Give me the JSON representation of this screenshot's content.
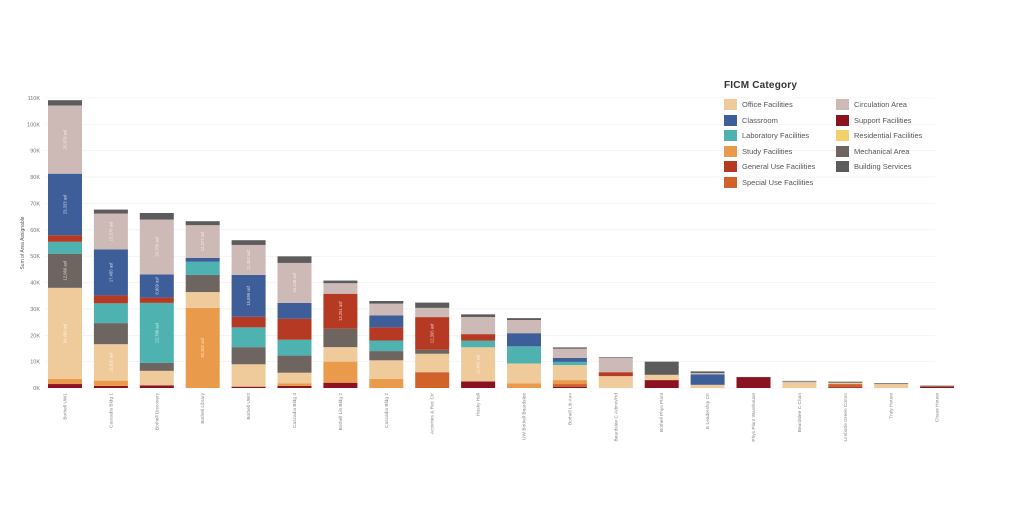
{
  "chart_data": {
    "type": "bar",
    "stacked": true,
    "title": "",
    "xlabel": "",
    "ylabel": "Sum of Area Assignable",
    "ylim": [
      0,
      110000
    ],
    "yticks": [
      0,
      10000,
      20000,
      30000,
      40000,
      50000,
      60000,
      70000,
      80000,
      90000,
      100000,
      110000
    ],
    "ytick_labels": [
      "0K",
      "10K",
      "20K",
      "30K",
      "40K",
      "50K",
      "60K",
      "70K",
      "80K",
      "90K",
      "100K",
      "110K"
    ],
    "grid": true,
    "legend_title": "FICM Category",
    "legend_position": "top-right",
    "legend_order": [
      "Office Facilities",
      "Circulation Area",
      "Classroom",
      "Support Facilities",
      "Laboratory Facilities",
      "Residential Facilities",
      "Study Facilities",
      "Mechanical Area",
      "General Use Facilities",
      "Building Services",
      "Special Use Facilities"
    ],
    "series_colors": {
      "Office Facilities": "#EFCB9C",
      "Classroom": "#3E5E9A",
      "Laboratory Facilities": "#4EB3B0",
      "Study Facilities": "#E99A4B",
      "General Use Facilities": "#B63A23",
      "Special Use Facilities": "#D2622C",
      "Circulation Area": "#CDB9B5",
      "Support Facilities": "#8A1221",
      "Residential Facilities": "#F2D16B",
      "Mechanical Area": "#6F6560",
      "Building Services": "#5C5C5C"
    },
    "stack_order": [
      "Support Facilities",
      "Special Use Facilities",
      "Study Facilities",
      "Office Facilities",
      "Mechanical Area",
      "Laboratory Facilities",
      "General Use Facilities",
      "Classroom",
      "Circulation Area",
      "Building Services"
    ],
    "categories": [
      "Bothell UW1",
      "Cascadia Bldg 1",
      "Bothell Discovery",
      "Bothell Library",
      "Bothell UW2",
      "Cascadia Bldg 3",
      "Bothell Lib Bldg 2",
      "Cascadia Bldg 2",
      "Activities & Rec Ctr",
      "Husky Hall",
      "UW Bothell Beardslee",
      "Bothell Lib Ann",
      "Beardslee C Admin/Hd",
      "Bothell Phys Plant",
      "E Leadership Ctr",
      "Phys Plant Warehouse",
      "Beardslee C Chan",
      "Limbatte Green Comm",
      "Truly House",
      "Chase House"
    ],
    "series": [
      {
        "name": "Support Facilities",
        "values": [
          1500,
          800,
          1000,
          0,
          500,
          800,
          2000,
          0,
          0,
          2500,
          0,
          500,
          0,
          3000,
          0,
          4000,
          0,
          300,
          0,
          400
        ]
      },
      {
        "name": "Special Use Facilities",
        "values": [
          0,
          0,
          0,
          0,
          0,
          0,
          0,
          0,
          6000,
          0,
          0,
          1000,
          0,
          0,
          0,
          0,
          0,
          1200,
          0,
          200
        ]
      },
      {
        "name": "Study Facilities",
        "values": [
          2000,
          2000,
          0,
          30382,
          0,
          1000,
          8000,
          3500,
          0,
          0,
          1800,
          1500,
          0,
          0,
          0,
          0,
          0,
          0,
          0,
          0
        ]
      },
      {
        "name": "Office Facilities",
        "values": [
          34488,
          13816,
          5500,
          6000,
          8500,
          4000,
          5500,
          7000,
          7000,
          12940,
          7500,
          5700,
          4500,
          2000,
          1200,
          0,
          2000,
          500,
          1500,
          0
        ]
      },
      {
        "name": "Mechanical Area",
        "values": [
          12966,
          8000,
          3000,
          6500,
          6500,
          6500,
          7000,
          3500,
          1500,
          0,
          0,
          0,
          0,
          0,
          0,
          0,
          0,
          0,
          0,
          0
        ]
      },
      {
        "name": "Laboratory Facilities",
        "values": [
          4500,
          7500,
          22788,
          5000,
          7500,
          6000,
          0,
          4000,
          0,
          2500,
          6500,
          1200,
          0,
          0,
          0,
          0,
          0,
          0,
          0,
          0
        ]
      },
      {
        "name": "General Use Facilities",
        "values": [
          2500,
          3000,
          2000,
          0,
          4000,
          8000,
          13251,
          5000,
          12395,
          2500,
          0,
          0,
          1500,
          0,
          0,
          0,
          0,
          0,
          0,
          0
        ]
      },
      {
        "name": "Classroom",
        "values": [
          23333,
          17485,
          8809,
          1500,
          15899,
          6000,
          0,
          4500,
          0,
          0,
          5000,
          1500,
          0,
          0,
          4000,
          0,
          0,
          0,
          0,
          0
        ]
      },
      {
        "name": "Circulation Area",
        "values": [
          25878,
          13576,
          20786,
          12377,
          11362,
          15138,
          4000,
          4500,
          3500,
          6500,
          5000,
          3500,
          5500,
          0,
          500,
          0,
          500,
          0,
          0,
          0
        ]
      },
      {
        "name": "Building Services",
        "values": [
          2000,
          1500,
          2500,
          1500,
          1800,
          2500,
          1000,
          1000,
          2000,
          1000,
          700,
          500,
          200,
          5000,
          600,
          200,
          200,
          400,
          300,
          300
        ]
      }
    ],
    "data_labels": [
      {
        "category": "Bothell UW1",
        "series": "Office Facilities",
        "text": "34,488 asf"
      },
      {
        "category": "Bothell UW1",
        "series": "Mechanical Area",
        "text": "12,966 asf"
      },
      {
        "category": "Bothell UW1",
        "series": "Classroom",
        "text": "23,333 asf"
      },
      {
        "category": "Bothell UW1",
        "series": "Circulation Area",
        "text": "25,878 asf"
      },
      {
        "category": "Cascadia Bldg 1",
        "series": "Office Facilities",
        "text": "13,816 asf"
      },
      {
        "category": "Cascadia Bldg 1",
        "series": "Classroom",
        "text": "17,485 asf"
      },
      {
        "category": "Cascadia Bldg 1",
        "series": "Circulation Area",
        "text": "13,576 asf"
      },
      {
        "category": "Bothell Discovery",
        "series": "Laboratory Facilities",
        "text": "22,788 asf"
      },
      {
        "category": "Bothell Discovery",
        "series": "Classroom",
        "text": "8,809 asf"
      },
      {
        "category": "Bothell Discovery",
        "series": "Circulation Area",
        "text": "20,786 asf"
      },
      {
        "category": "Bothell Library",
        "series": "Study Facilities",
        "text": "30,382 asf"
      },
      {
        "category": "Bothell Library",
        "series": "Circulation Area",
        "text": "12,377 asf"
      },
      {
        "category": "Bothell UW2",
        "series": "Classroom",
        "text": "15,899 asf"
      },
      {
        "category": "Bothell UW2",
        "series": "Circulation Area",
        "text": "11,362 asf"
      },
      {
        "category": "Cascadia Bldg 3",
        "series": "Circulation Area",
        "text": "15,138 asf"
      },
      {
        "category": "Bothell Lib Bldg 2",
        "series": "General Use Facilities",
        "text": "13,251 asf"
      },
      {
        "category": "Activities & Rec Ctr",
        "series": "General Use Facilities",
        "text": "12,395 asf"
      },
      {
        "category": "Husky Hall",
        "series": "Office Facilities",
        "text": "12,940 asf"
      }
    ]
  }
}
